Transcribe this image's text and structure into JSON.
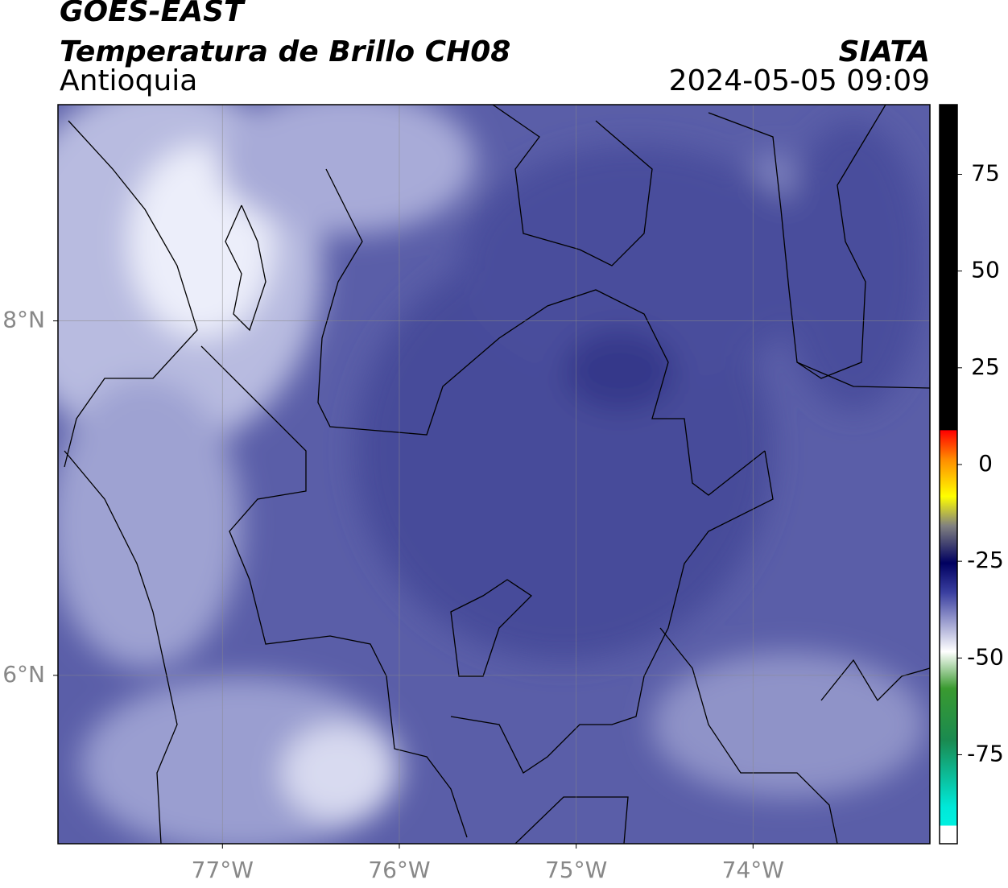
{
  "map": {
    "title": "GOES-EAST",
    "subtitle": "Temperatura de Brillo CH08",
    "region": "Antioquia",
    "source": "SIATA",
    "datetime": "2024-05-05 09:09",
    "lonlim": [
      -77.93,
      -73.0
    ],
    "latlim": [
      5.05,
      9.22
    ],
    "lonticks": [
      {
        "value": -77,
        "label": "77°W"
      },
      {
        "value": -76,
        "label": "76°W"
      },
      {
        "value": -75,
        "label": "75°W"
      },
      {
        "value": -74,
        "label": "74°W"
      }
    ],
    "latticks": [
      {
        "value": 8,
        "label": "8°N"
      },
      {
        "value": 6,
        "label": "6°N"
      }
    ],
    "grid": true,
    "colorbar": {
      "lim": [
        -98,
        93
      ],
      "ticks": [
        75,
        50,
        25,
        0,
        -25,
        -50,
        -75
      ]
    }
  }
}
